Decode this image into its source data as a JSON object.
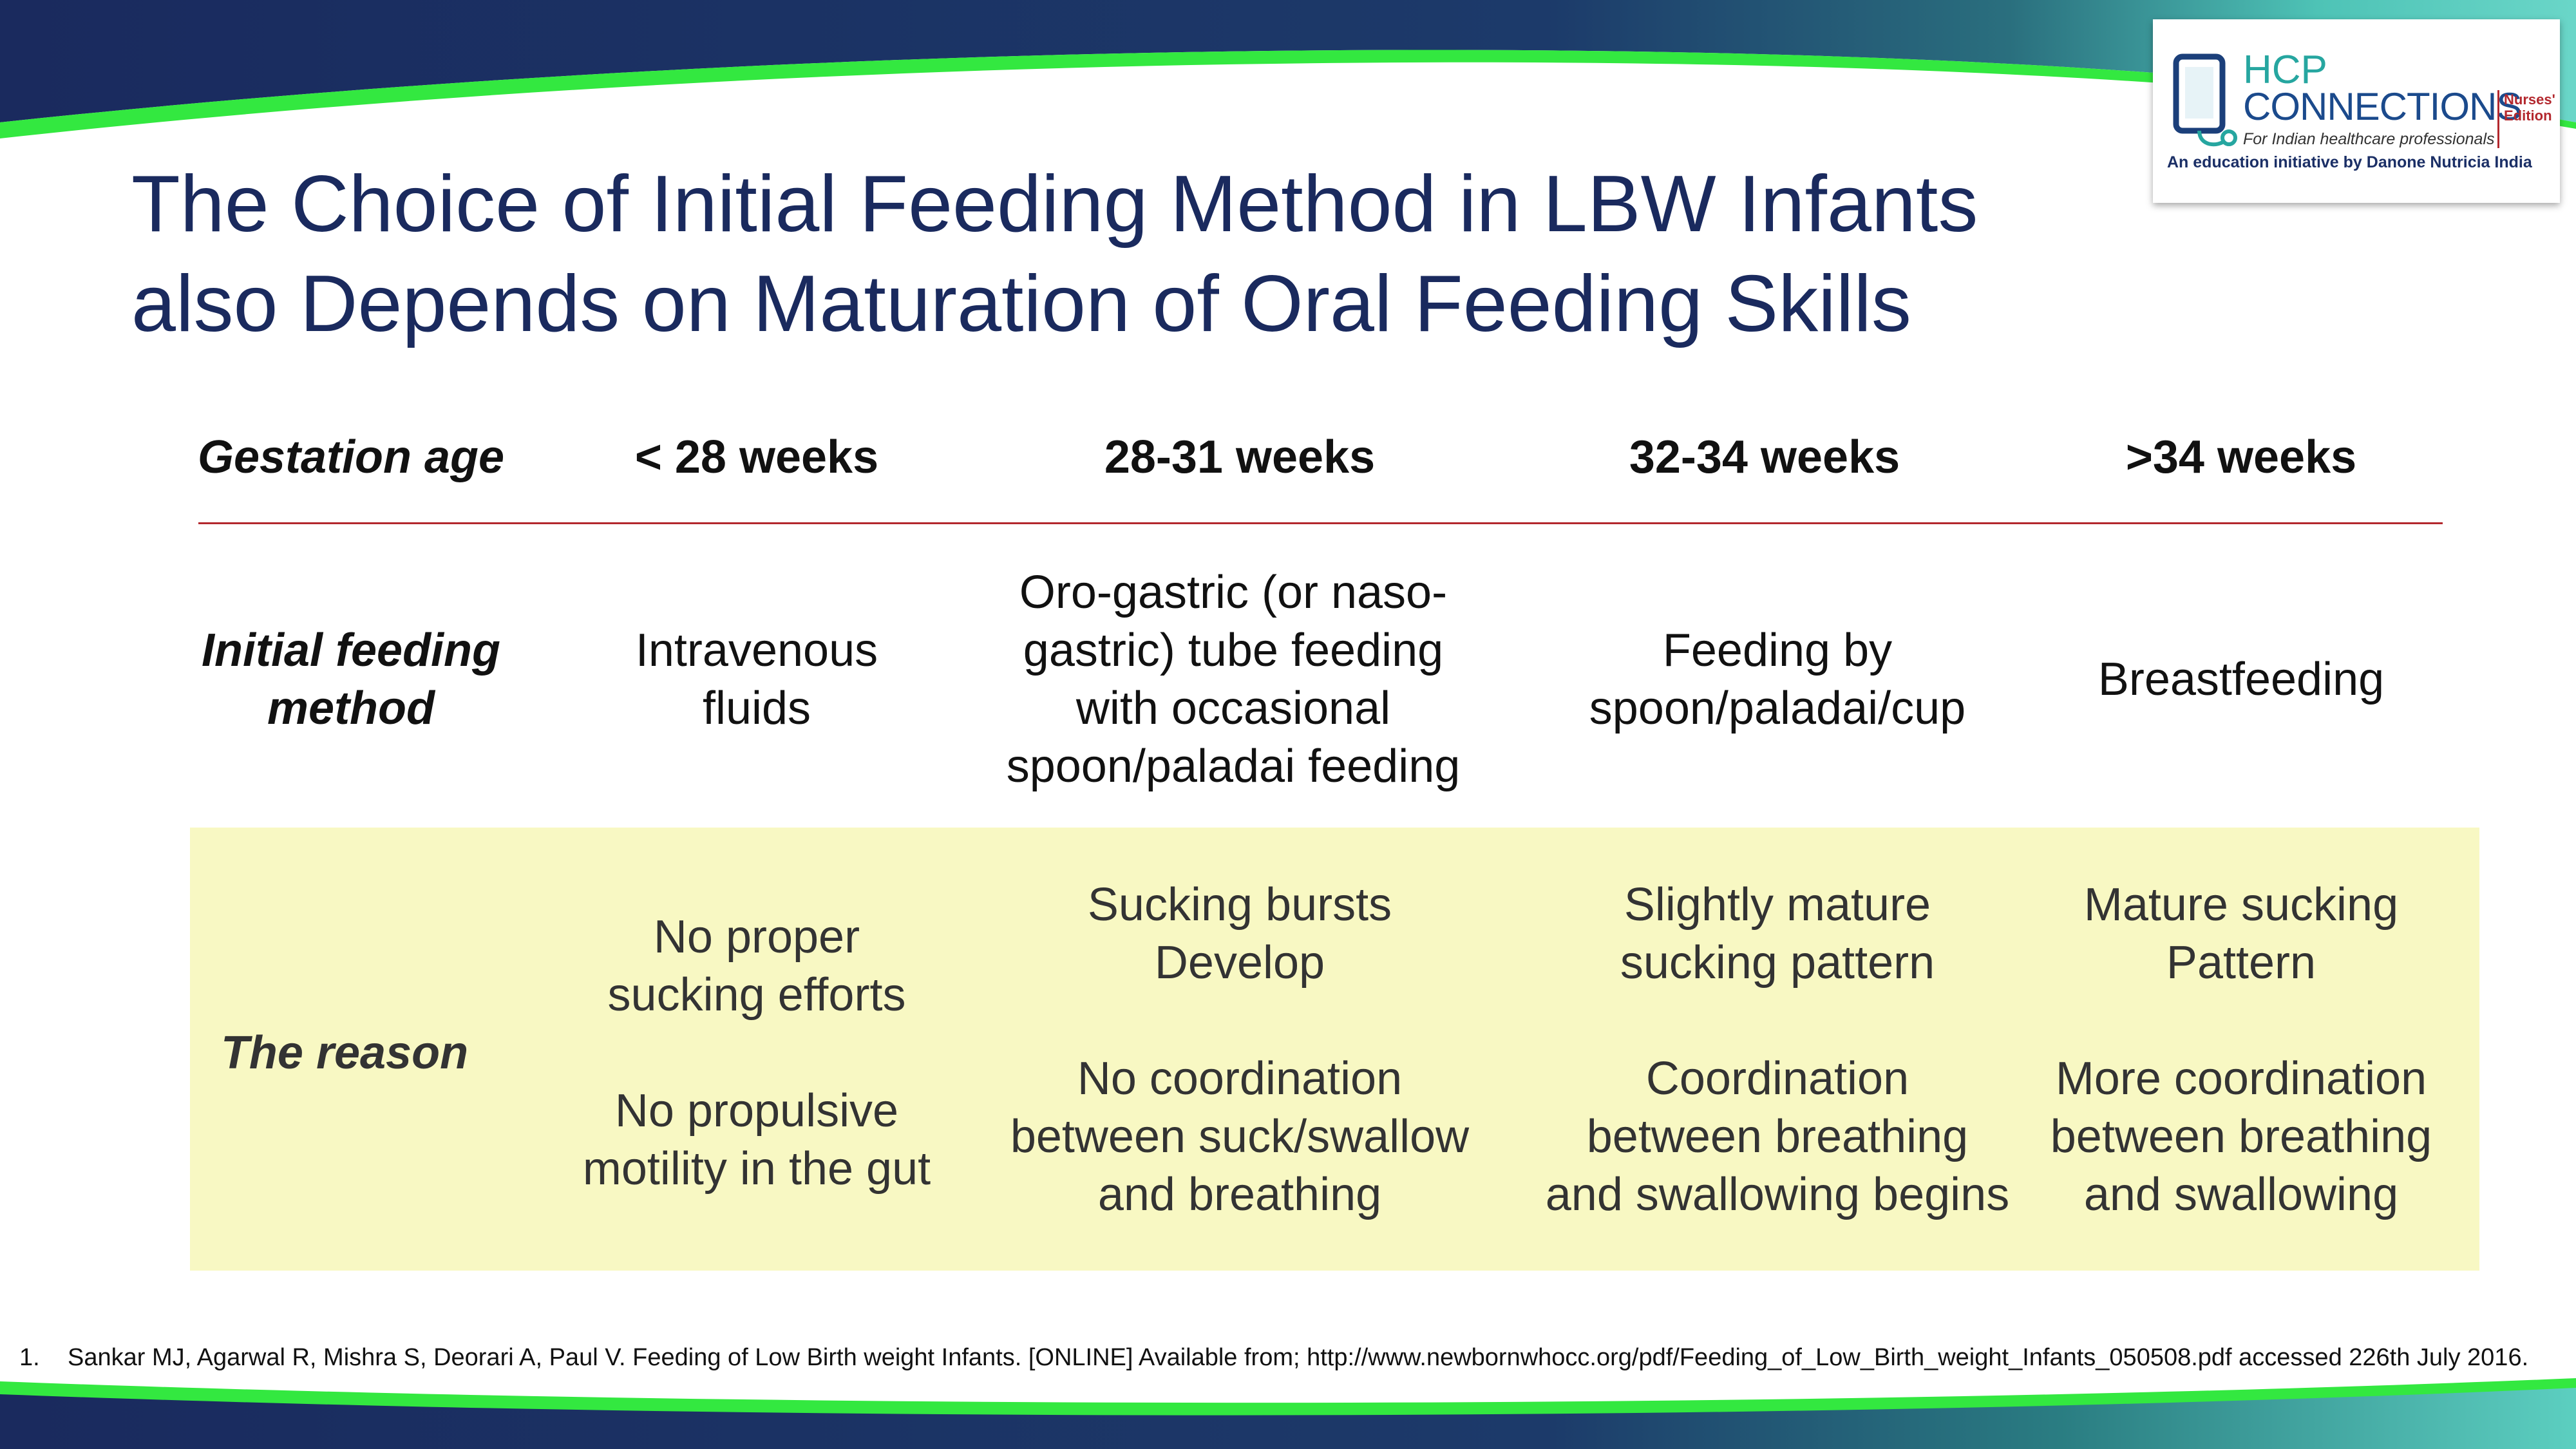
{
  "title": {
    "line1": "The Choice of Initial Feeding Method in LBW Infants",
    "line2": "also Depends on Maturation of Oral Feeding Skills"
  },
  "logo": {
    "hcp": "HCP",
    "connections": "CONNECTIONS",
    "edition_line1": "Nurses'",
    "edition_line2": "Edition",
    "tagline": "For Indian healthcare professionals",
    "initiative": "An education initiative by Danone Nutricia India"
  },
  "table": {
    "header": {
      "label": "Gestation age",
      "cols": [
        "< 28 weeks",
        "28-31 weeks",
        "32-34 weeks",
        ">34 weeks"
      ]
    },
    "feeding": {
      "label_line1": "Initial feeding",
      "label_line2": "method",
      "cells": [
        [
          "Intravenous",
          "fluids"
        ],
        [
          "Oro-gastric (or naso-",
          "gastric) tube feeding",
          "with occasional",
          "spoon/paladai feeding"
        ],
        [
          "Feeding by",
          "spoon/paladai/cup"
        ],
        [
          "Breastfeeding"
        ]
      ]
    },
    "reason": {
      "label": "The reason",
      "cells": [
        {
          "first": [
            "No proper",
            "sucking efforts"
          ],
          "second": [
            "No propulsive",
            "motility in the gut"
          ]
        },
        {
          "first": [
            "Sucking bursts",
            "Develop"
          ],
          "second": [
            "No coordination",
            "between suck/swallow",
            "and breathing"
          ]
        },
        {
          "first": [
            "Slightly mature",
            "sucking pattern"
          ],
          "second": [
            "Coordination",
            "between breathing",
            "and swallowing begins"
          ]
        },
        {
          "first": [
            "Mature sucking",
            "Pattern"
          ],
          "second": [
            "More coordination",
            "between breathing",
            "and swallowing"
          ]
        }
      ]
    }
  },
  "footnote": {
    "number": "1.",
    "text": "Sankar MJ, Agarwal R, Mishra S, Deorari A, Paul V. Feeding of Low Birth weight Infants. [ONLINE] Available from; http://www.newbornwhocc.org/pdf/Feeding_of_Low_Birth_weight_Infants_050508.pdf accessed 226th July 2016."
  },
  "colors": {
    "title": "#1a2a5e",
    "navy_band": "#1a2a5e",
    "green_band": "#33e840",
    "teal_accent": "#4ec3b6",
    "divider": "#b3282e",
    "reason_bg": "#f8f8c3"
  }
}
